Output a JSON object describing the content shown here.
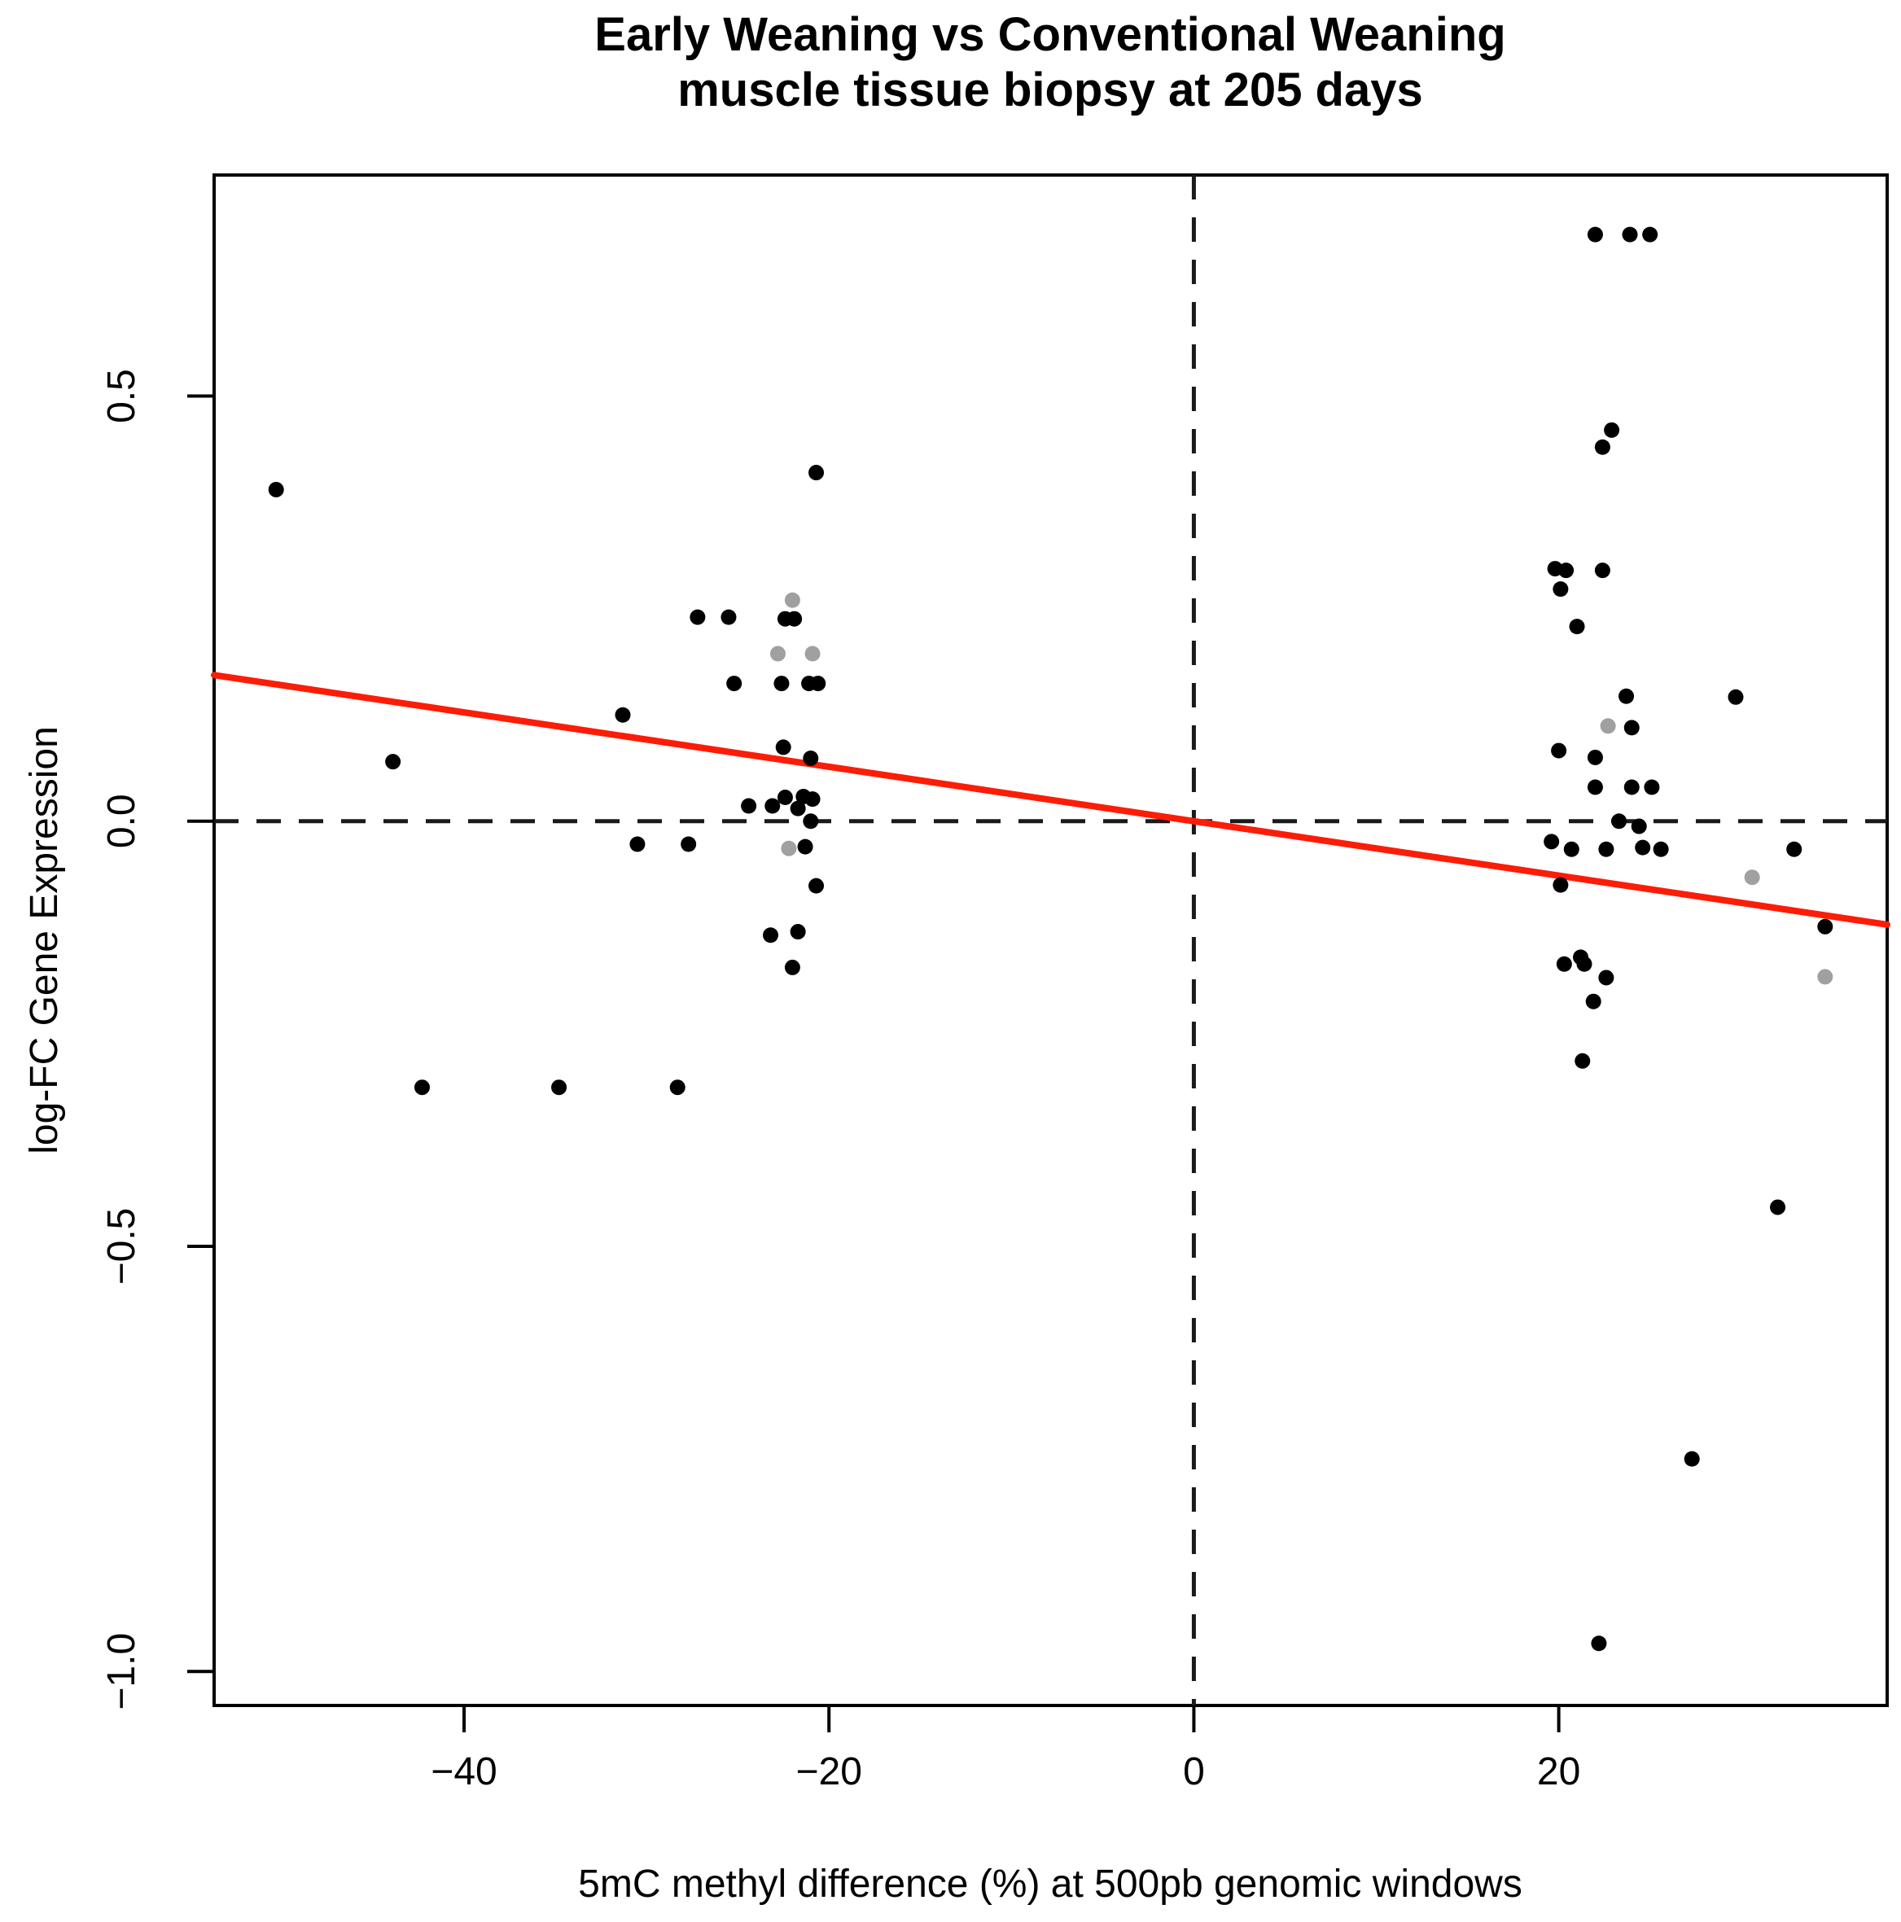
{
  "chart_data": {
    "type": "scatter",
    "title": "Early Weaning vs Conventional Weaning\nmuscle tissue biopsy at 205 days",
    "title_line1": "Early Weaning vs Conventional Weaning",
    "title_line2": "muscle tissue biopsy at 205 days",
    "xlabel": "5mC methyl difference (%) at 500pb genomic windows",
    "ylabel": "log-FC Gene Expression",
    "xlim": [
      -53.7,
      38.0
    ],
    "ylim": [
      -1.04,
      0.76
    ],
    "grid": false,
    "legend": "none",
    "x_ticks": {
      "values": [
        -40,
        -20,
        0,
        20
      ],
      "labels": [
        "−40",
        "−20",
        "0",
        "20"
      ]
    },
    "y_ticks": {
      "values": [
        -1.0,
        -0.5,
        0.0,
        0.5
      ],
      "labels": [
        "−1.0",
        "−0.5",
        "0.0",
        "0.5"
      ]
    },
    "reference_lines": {
      "vertical_x": 0,
      "horizontal_y": 0,
      "style": "dashed",
      "color": "#1a1a1a"
    },
    "trend_line": {
      "slope": -0.0032,
      "intercept": 0.0,
      "color": "#fb1d07"
    },
    "point_radius_px": 9.5,
    "series": [
      {
        "name": "black_points",
        "color": "#000000",
        "points": [
          [
            -50.3,
            0.39
          ],
          [
            -20.7,
            0.41
          ],
          [
            -27.2,
            0.24
          ],
          [
            -25.5,
            0.24
          ],
          [
            -22.4,
            0.238
          ],
          [
            -21.9,
            0.238
          ],
          [
            -25.2,
            0.162
          ],
          [
            -22.6,
            0.162
          ],
          [
            -21.1,
            0.162
          ],
          [
            -20.6,
            0.162
          ],
          [
            -43.9,
            0.07
          ],
          [
            -31.3,
            0.125
          ],
          [
            -22.5,
            0.087
          ],
          [
            -21.0,
            0.074
          ],
          [
            -24.4,
            0.018
          ],
          [
            -23.1,
            0.018
          ],
          [
            -22.4,
            0.028
          ],
          [
            -21.7,
            0.015
          ],
          [
            -21.4,
            0.029
          ],
          [
            -20.9,
            0.026
          ],
          [
            -21.0,
            0.0
          ],
          [
            -30.5,
            -0.027
          ],
          [
            -27.7,
            -0.027
          ],
          [
            -21.3,
            -0.03
          ],
          [
            -20.7,
            -0.076
          ],
          [
            -23.2,
            -0.134
          ],
          [
            -21.7,
            -0.13
          ],
          [
            -22.0,
            -0.172
          ],
          [
            -42.3,
            -0.313
          ],
          [
            -34.8,
            -0.313
          ],
          [
            -28.3,
            -0.313
          ],
          [
            22.0,
            0.69
          ],
          [
            23.9,
            0.69
          ],
          [
            25.0,
            0.69
          ],
          [
            22.9,
            0.46
          ],
          [
            22.4,
            0.44
          ],
          [
            19.8,
            0.297
          ],
          [
            20.4,
            0.295
          ],
          [
            22.4,
            0.295
          ],
          [
            20.1,
            0.273
          ],
          [
            21.0,
            0.229
          ],
          [
            23.7,
            0.147
          ],
          [
            29.7,
            0.146
          ],
          [
            24.0,
            0.11
          ],
          [
            20.0,
            0.083
          ],
          [
            22.0,
            0.075
          ],
          [
            22.0,
            0.04
          ],
          [
            24.0,
            0.04
          ],
          [
            25.1,
            0.04
          ],
          [
            23.3,
            0.0
          ],
          [
            24.4,
            -0.006
          ],
          [
            19.6,
            -0.024
          ],
          [
            20.7,
            -0.033
          ],
          [
            22.6,
            -0.033
          ],
          [
            24.6,
            -0.031
          ],
          [
            25.6,
            -0.033
          ],
          [
            32.9,
            -0.033
          ],
          [
            20.1,
            -0.075
          ],
          [
            34.6,
            -0.124
          ],
          [
            20.3,
            -0.168
          ],
          [
            21.2,
            -0.16
          ],
          [
            21.4,
            -0.168
          ],
          [
            22.6,
            -0.184
          ],
          [
            21.9,
            -0.212
          ],
          [
            21.3,
            -0.282
          ],
          [
            32.0,
            -0.454
          ],
          [
            27.3,
            -0.75
          ],
          [
            22.2,
            -0.967
          ]
        ]
      },
      {
        "name": "gray_points",
        "color": "#a0a0a0",
        "points": [
          [
            -22.0,
            0.26
          ],
          [
            -22.8,
            0.197
          ],
          [
            -20.9,
            0.197
          ],
          [
            -22.2,
            -0.032
          ],
          [
            22.7,
            0.112
          ],
          [
            30.6,
            -0.066
          ],
          [
            34.6,
            -0.183
          ]
        ]
      }
    ]
  }
}
